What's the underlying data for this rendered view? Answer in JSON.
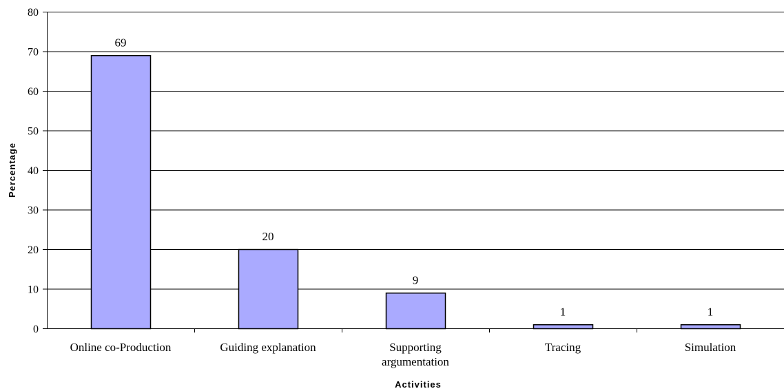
{
  "chart_data": {
    "type": "bar",
    "categories": [
      "Online co-Production",
      "Guiding explanation",
      "Supporting argumentation",
      "Tracing",
      "Simulation"
    ],
    "category_lines": [
      [
        "Online co-Production"
      ],
      [
        "Guiding explanation"
      ],
      [
        "Supporting",
        "argumentation"
      ],
      [
        "Tracing"
      ],
      [
        "Simulation"
      ]
    ],
    "values": [
      69,
      20,
      9,
      1,
      1
    ],
    "data_labels": [
      "69",
      "20",
      "9",
      "1",
      "1"
    ],
    "xlabel": "Activities",
    "ylabel": "Percentage",
    "ylim": [
      0,
      80
    ],
    "yticks": [
      "0",
      "10",
      "20",
      "30",
      "40",
      "50",
      "60",
      "70",
      "80"
    ],
    "grid": true,
    "bar_color": "#aaaaff",
    "legend": "none"
  }
}
